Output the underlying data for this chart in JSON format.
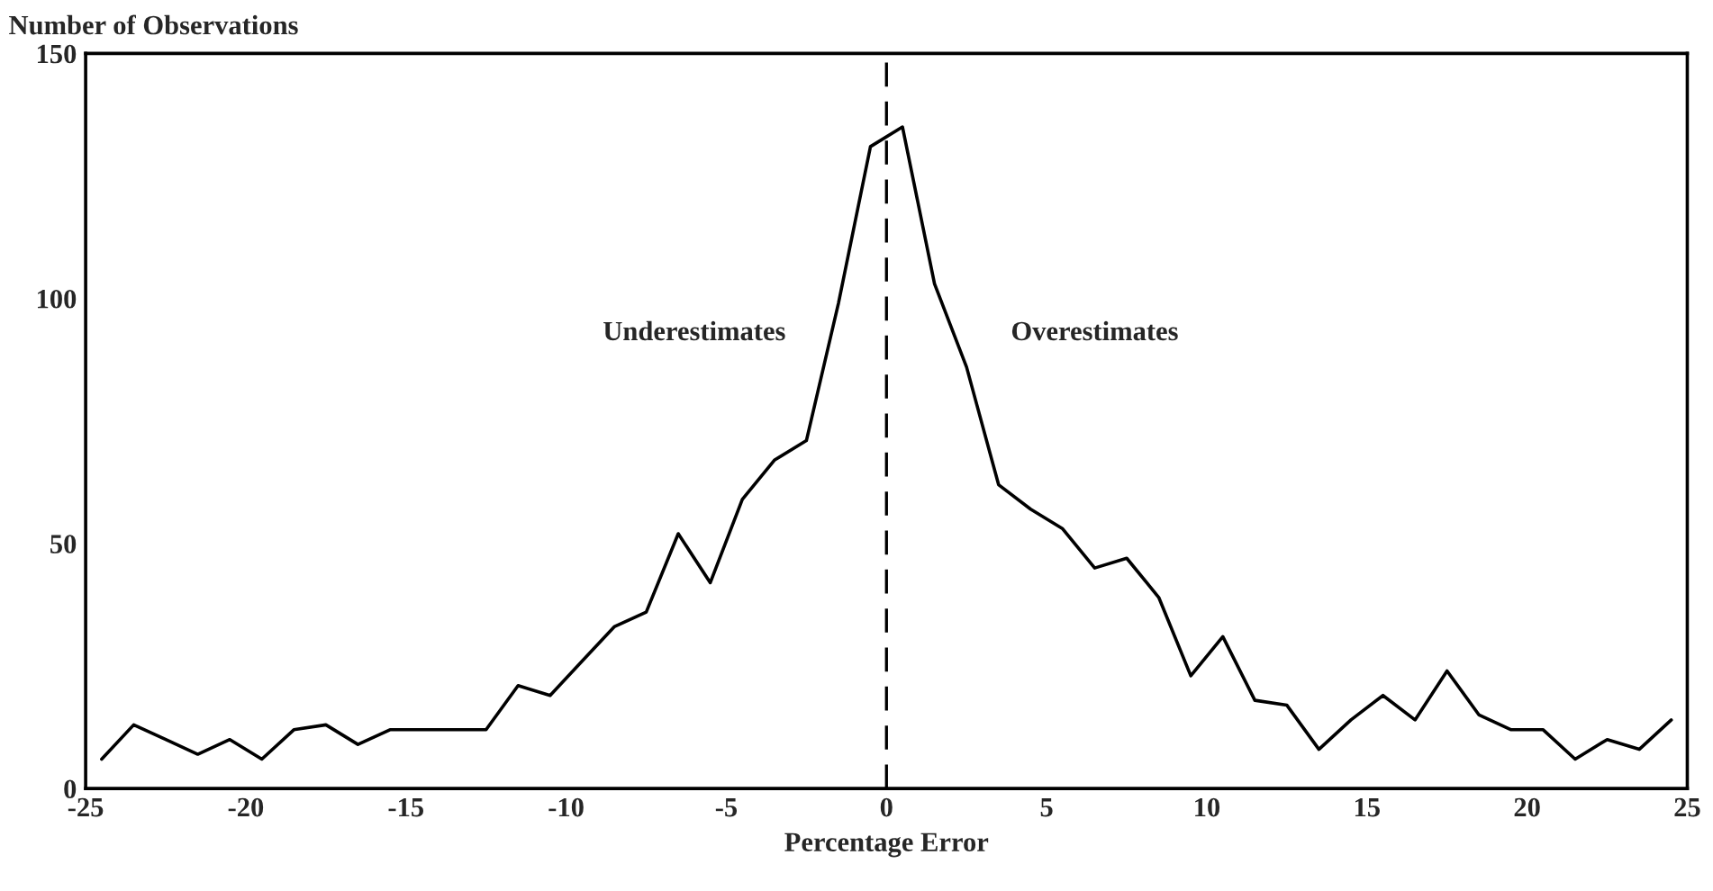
{
  "chart_data": {
    "type": "line",
    "xlabel": "Percentage Error",
    "ylabel": "Number of Observations",
    "x": [
      -24.5,
      -23.5,
      -22.5,
      -21.5,
      -20.5,
      -19.5,
      -18.5,
      -17.5,
      -16.5,
      -15.5,
      -14.5,
      -13.5,
      -12.5,
      -11.5,
      -10.5,
      -9.5,
      -8.5,
      -7.5,
      -6.5,
      -5.5,
      -4.5,
      -3.5,
      -2.5,
      -1.5,
      -0.5,
      0.5,
      1.5,
      2.5,
      3.5,
      4.5,
      5.5,
      6.5,
      7.5,
      8.5,
      9.5,
      10.5,
      11.5,
      12.5,
      13.5,
      14.5,
      15.5,
      16.5,
      17.5,
      18.5,
      19.5,
      20.5,
      21.5,
      22.5,
      23.5,
      24.5
    ],
    "series": [
      {
        "color": "#000000",
        "values": [
          6,
          13,
          10,
          7,
          10,
          6,
          12,
          13,
          9,
          12,
          12,
          12,
          12,
          21,
          19,
          26,
          33,
          36,
          52,
          42,
          59,
          67,
          71,
          99,
          131,
          135,
          103,
          86,
          62,
          57,
          53,
          45,
          47,
          39,
          23,
          31,
          18,
          17,
          8,
          14,
          19,
          14,
          24,
          15,
          12,
          12,
          6,
          10,
          8,
          14
        ]
      }
    ],
    "xlim": [
      -25,
      25
    ],
    "xticks": [
      -25,
      -20,
      -15,
      -10,
      -5,
      0,
      5,
      10,
      15,
      20,
      25
    ],
    "ylim": [
      0,
      150
    ],
    "yticks": [
      0,
      50,
      100,
      150
    ],
    "ref_lines": [
      {
        "axis": "x",
        "value": 0,
        "color": "#000000",
        "line_style": "dashed"
      }
    ],
    "annotations": [
      "Underestimates",
      "Overestimates"
    ],
    "grid": false,
    "marker": "none",
    "line_style": "solid"
  }
}
